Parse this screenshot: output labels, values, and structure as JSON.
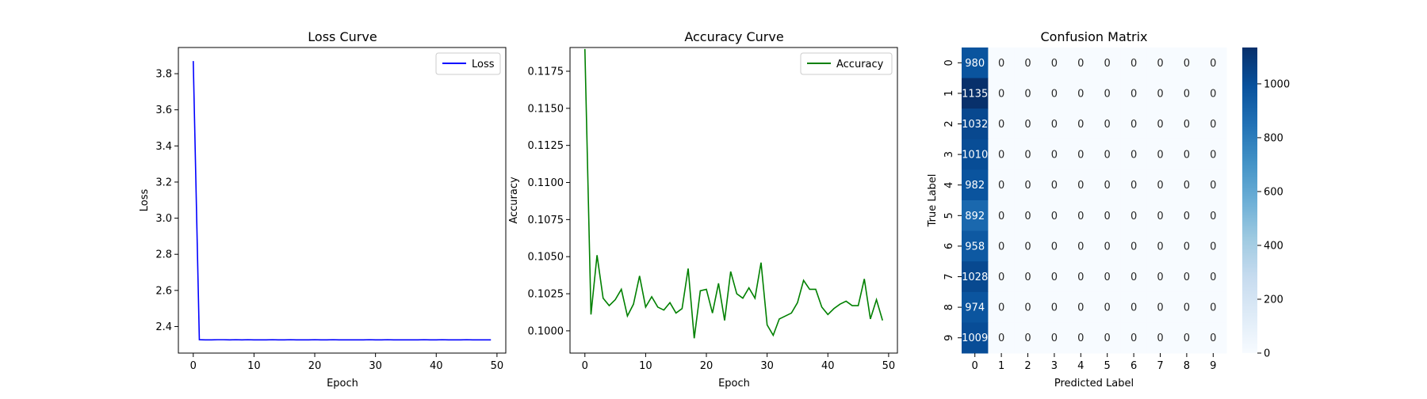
{
  "chart_data": [
    {
      "type": "line",
      "title": "Loss Curve",
      "xlabel": "Epoch",
      "ylabel": "Loss",
      "xlim": [
        -2.45,
        51.45
      ],
      "ylim": [
        2.253,
        3.945
      ],
      "xticks": [
        "0",
        "10",
        "20",
        "30",
        "40",
        "50"
      ],
      "yticks": [
        "2.4",
        "2.6",
        "2.8",
        "3.0",
        "3.2",
        "3.4",
        "3.6",
        "3.8"
      ],
      "legend_position": "top-right",
      "series": [
        {
          "name": "Loss",
          "color": "#0000ff",
          "x": [
            0,
            1,
            2,
            3,
            4,
            5,
            6,
            7,
            8,
            9,
            10,
            11,
            12,
            13,
            14,
            15,
            16,
            17,
            18,
            19,
            20,
            21,
            22,
            23,
            24,
            25,
            26,
            27,
            28,
            29,
            30,
            31,
            32,
            33,
            34,
            35,
            36,
            37,
            38,
            39,
            40,
            41,
            42,
            43,
            44,
            45,
            46,
            47,
            48,
            49
          ],
          "values": [
            3.87,
            2.327,
            2.326,
            2.326,
            2.327,
            2.327,
            2.326,
            2.327,
            2.326,
            2.327,
            2.326,
            2.326,
            2.326,
            2.327,
            2.326,
            2.326,
            2.327,
            2.326,
            2.326,
            2.326,
            2.327,
            2.326,
            2.326,
            2.327,
            2.326,
            2.326,
            2.326,
            2.326,
            2.326,
            2.327,
            2.326,
            2.326,
            2.327,
            2.326,
            2.326,
            2.326,
            2.326,
            2.326,
            2.327,
            2.326,
            2.326,
            2.327,
            2.326,
            2.326,
            2.326,
            2.327,
            2.326,
            2.326,
            2.326,
            2.326
          ]
        }
      ]
    },
    {
      "type": "line",
      "title": "Accuracy Curve",
      "xlabel": "Epoch",
      "ylabel": "Accuracy",
      "xlim": [
        -2.45,
        51.45
      ],
      "ylim": [
        0.0985,
        0.1191
      ],
      "xticks": [
        "0",
        "10",
        "20",
        "30",
        "40",
        "50"
      ],
      "yticks": [
        "0.1000",
        "0.1025",
        "0.1050",
        "0.1075",
        "0.1100",
        "0.1125",
        "0.1150",
        "0.1175"
      ],
      "legend_position": "top-right",
      "series": [
        {
          "name": "Accuracy",
          "color": "#008000",
          "x": [
            0,
            1,
            2,
            3,
            4,
            5,
            6,
            7,
            8,
            9,
            10,
            11,
            12,
            13,
            14,
            15,
            16,
            17,
            18,
            19,
            20,
            21,
            22,
            23,
            24,
            25,
            26,
            27,
            28,
            29,
            30,
            31,
            32,
            33,
            34,
            35,
            36,
            37,
            38,
            39,
            40,
            41,
            42,
            43,
            44,
            45,
            46,
            47,
            48,
            49
          ],
          "values": [
            0.119,
            0.1011,
            0.1051,
            0.1022,
            0.1017,
            0.1021,
            0.1028,
            0.101,
            0.1018,
            0.1037,
            0.1016,
            0.1023,
            0.1016,
            0.1014,
            0.1019,
            0.1012,
            0.1015,
            0.1042,
            0.0995,
            0.1027,
            0.1028,
            0.1012,
            0.1032,
            0.1007,
            0.104,
            0.1025,
            0.1022,
            0.1029,
            0.1022,
            0.1046,
            0.1004,
            0.0997,
            0.1008,
            0.101,
            0.1012,
            0.1019,
            0.1034,
            0.1028,
            0.1028,
            0.1016,
            0.1011,
            0.1015,
            0.1018,
            0.102,
            0.1017,
            0.1017,
            0.1035,
            0.1008,
            0.1021,
            0.1007
          ]
        }
      ]
    },
    {
      "type": "heatmap",
      "title": "Confusion Matrix",
      "xlabel": "Predicted Label",
      "ylabel": "True Label",
      "x_categories": [
        "0",
        "1",
        "2",
        "3",
        "4",
        "5",
        "6",
        "7",
        "8",
        "9"
      ],
      "y_categories": [
        "0",
        "1",
        "2",
        "3",
        "4",
        "5",
        "6",
        "7",
        "8",
        "9"
      ],
      "colormap": "Blues",
      "vmin": 0,
      "vmax": 1135,
      "colorbar_ticks": [
        "0",
        "200",
        "400",
        "600",
        "800",
        "1000"
      ],
      "values": [
        [
          980,
          0,
          0,
          0,
          0,
          0,
          0,
          0,
          0,
          0
        ],
        [
          1135,
          0,
          0,
          0,
          0,
          0,
          0,
          0,
          0,
          0
        ],
        [
          1032,
          0,
          0,
          0,
          0,
          0,
          0,
          0,
          0,
          0
        ],
        [
          1010,
          0,
          0,
          0,
          0,
          0,
          0,
          0,
          0,
          0
        ],
        [
          982,
          0,
          0,
          0,
          0,
          0,
          0,
          0,
          0,
          0
        ],
        [
          892,
          0,
          0,
          0,
          0,
          0,
          0,
          0,
          0,
          0
        ],
        [
          958,
          0,
          0,
          0,
          0,
          0,
          0,
          0,
          0,
          0
        ],
        [
          1028,
          0,
          0,
          0,
          0,
          0,
          0,
          0,
          0,
          0
        ],
        [
          974,
          0,
          0,
          0,
          0,
          0,
          0,
          0,
          0,
          0
        ],
        [
          1009,
          0,
          0,
          0,
          0,
          0,
          0,
          0,
          0,
          0
        ]
      ]
    }
  ]
}
